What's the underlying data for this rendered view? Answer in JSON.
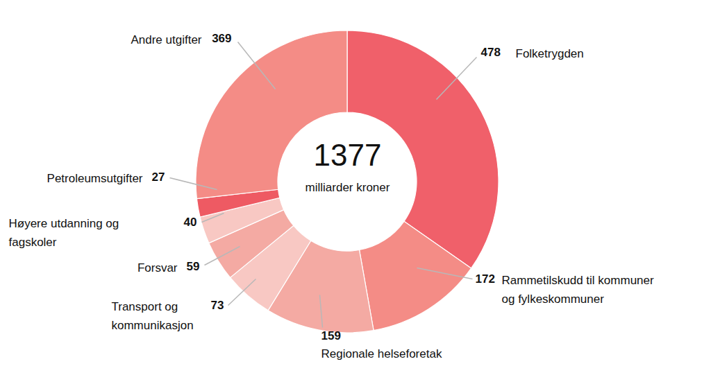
{
  "chart_data": {
    "type": "donut",
    "categories": [
      "Folketrygden",
      "Rammetilskudd til kommuner\nog fylkeskommuner",
      "Regionale helseforetak",
      "Transport og\nkommunikasjon",
      "Forsvar",
      "Høyere utdanning og\nfagskoler",
      "Petroleumsutgifter",
      "Andre utgifter"
    ],
    "values": [
      478,
      172,
      159,
      73,
      59,
      40,
      27,
      369
    ],
    "colors": [
      "#f0606a",
      "#f48c86",
      "#f4aaa3",
      "#f8c8c3",
      "#f4aaa3",
      "#f8c8c3",
      "#ee5a63",
      "#f48c86"
    ],
    "total": 1377,
    "center_label": "milliarder kroner",
    "data_labels": true
  }
}
